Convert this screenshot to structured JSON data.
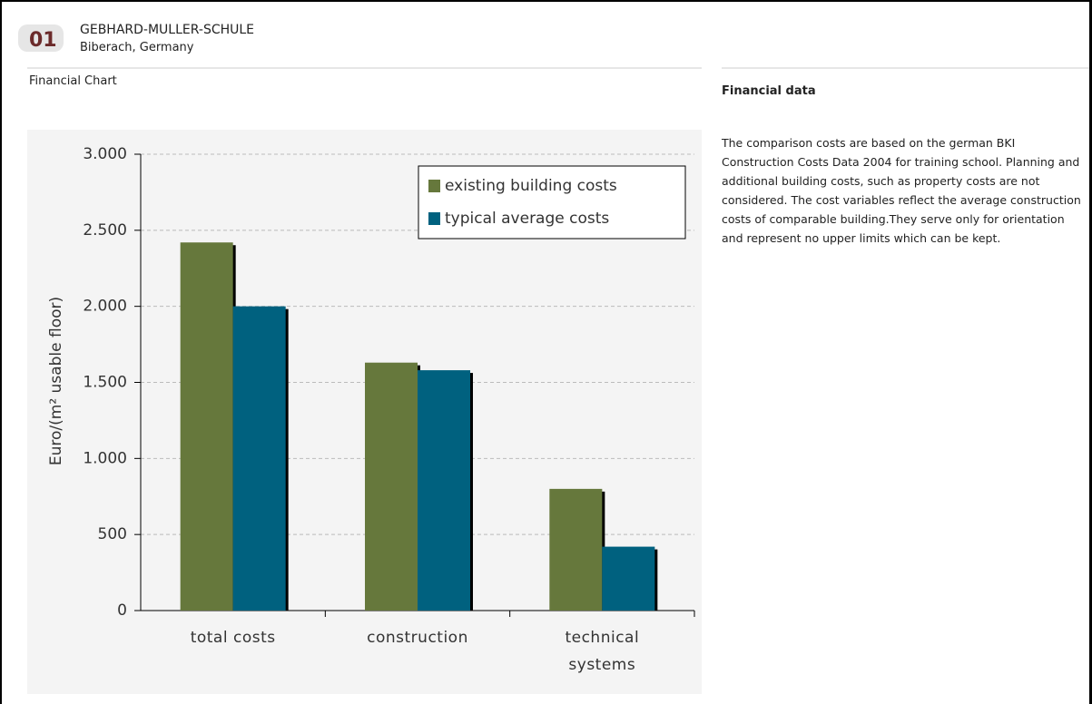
{
  "header": {
    "badge": "01",
    "title": "GEBHARD-MULLER-SCHULE",
    "subtitle": "Biberach, Germany",
    "section": "Financial Chart"
  },
  "chart_data": {
    "type": "bar",
    "ylabel": "Euro/(m² usable floor)",
    "categories": [
      "total costs",
      "construction",
      "technical systems"
    ],
    "series": [
      {
        "name": "existing building costs",
        "color": "#66783c",
        "values": [
          2420,
          1630,
          800
        ]
      },
      {
        "name": "typical average costs",
        "color": "#00617f",
        "values": [
          2000,
          1580,
          420
        ]
      }
    ],
    "ylim": [
      0,
      3000
    ],
    "yticks": [
      0,
      500,
      {
        "value": 1000,
        "label": "1.000"
      },
      {
        "value": 1500,
        "label": "1.500"
      },
      {
        "value": 2000,
        "label": "2.000"
      },
      {
        "value": 2500,
        "label": "2.500"
      },
      {
        "value": 3000,
        "label": "3.000"
      }
    ],
    "grid": true,
    "legend": "upper right"
  },
  "sidebar": {
    "title": "Financial data",
    "text": "The comparison costs are based on the german BKI Construction Costs Data 2004 for training school. Planning and additional building costs, such as property costs are not considered. The cost variables reflect the average construction costs of comparable building.They serve only for orientation and represent no upper limits which can be kept."
  }
}
